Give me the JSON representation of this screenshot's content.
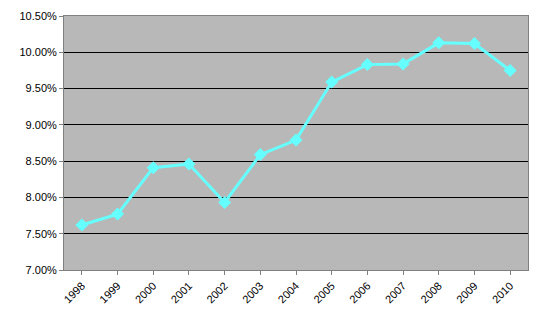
{
  "chart_data": {
    "type": "line",
    "categories": [
      "1998",
      "1999",
      "2000",
      "2001",
      "2002",
      "2003",
      "2004",
      "2005",
      "2006",
      "2007",
      "2008",
      "2009",
      "2010"
    ],
    "values": [
      7.62,
      7.77,
      8.41,
      8.46,
      7.93,
      8.59,
      8.79,
      9.59,
      9.83,
      9.84,
      10.13,
      10.12,
      9.75
    ],
    "color": "#66ffff",
    "marker": "diamond",
    "ylim": [
      7,
      10.5
    ],
    "yticks": [
      {
        "value": 7,
        "label": "7.00%"
      },
      {
        "value": 7.5,
        "label": "7.50%"
      },
      {
        "value": 8,
        "label": "8.00%"
      },
      {
        "value": 8.5,
        "label": "8.50%"
      },
      {
        "value": 9,
        "label": "9.00%"
      },
      {
        "value": 9.5,
        "label": "9.50%"
      },
      {
        "value": 10,
        "label": "10.00%"
      },
      {
        "value": 10.5,
        "label": "10.50%"
      }
    ],
    "grid": true
  }
}
